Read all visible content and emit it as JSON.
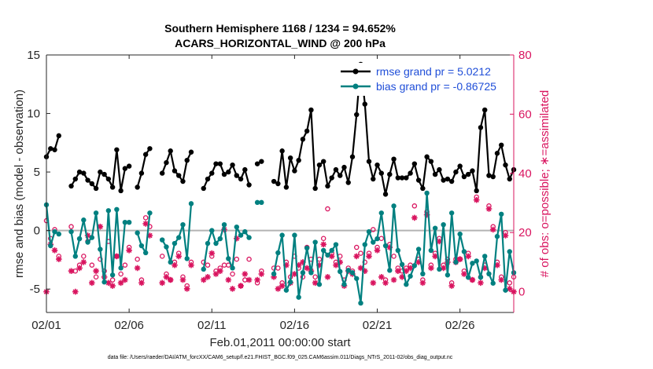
{
  "chart_data": {
    "type": "line",
    "title_line1": "Southern Hemisphere 1168 / 1234 = 94.652%",
    "title_line2": "ACARS_HORIZONTAL_WIND @ 200 hPa",
    "xlabel": "Feb.01,2011 00:00:00 start",
    "ylabel_left": "rmse and bias (model - observation)",
    "ylabel_right": "# of obs: o=possible; ∗=assimilated",
    "footer": "data file: /Users/raeder/DAI/ATM_forcXX/CAM6_setup/f.e21.FHIST_BGC.f09_025.CAM6assim.011/Diags_NTrS_2011-02/obs_diag_output.nc",
    "x_ticks": [
      "02/01",
      "02/06",
      "02/11",
      "02/16",
      "02/21",
      "02/26"
    ],
    "x_tick_days": [
      1,
      6,
      11,
      16,
      21,
      26
    ],
    "xlim": [
      1,
      29.25
    ],
    "ylim_left": [
      -7,
      15
    ],
    "y_ticks_left": [
      -5,
      0,
      5,
      10,
      15
    ],
    "ylim_right": [
      -7,
      80
    ],
    "y_ticks_right": [
      0,
      20,
      40,
      60,
      80
    ],
    "colors": {
      "rmse": "#000000",
      "bias": "#008080",
      "obs": "#d9145f",
      "zero_line": "#b3b3b3"
    },
    "legend": [
      {
        "key": "rmse",
        "label": "rmse grand pr = 5.0212"
      },
      {
        "key": "bias",
        "label": "bias grand pr = -0.86725"
      }
    ],
    "legend_placement": "top-right",
    "series": [
      {
        "name": "rmse grand pr = 5.0212",
        "key": "rmse",
        "values": [
          6.3,
          7.0,
          6.9,
          8.1,
          null,
          null,
          3.8,
          4.4,
          5.0,
          4.9,
          4.3,
          4.0,
          3.6,
          5.0,
          4.8,
          4.4,
          3.7,
          6.9,
          3.4,
          5.3,
          5.5,
          null,
          3.7,
          4.9,
          6.5,
          7.0,
          null,
          null,
          4.9,
          5.8,
          6.8,
          5.1,
          4.7,
          4.2,
          6.0,
          6.7,
          null,
          null,
          3.6,
          4.4,
          4.9,
          5.7,
          5.7,
          4.8,
          5.0,
          5.6,
          4.7,
          4.4,
          5.2,
          3.9,
          null,
          5.7,
          5.9,
          null,
          null,
          4.2,
          4.0,
          6.8,
          3.7,
          6.2,
          5.1,
          6.0,
          7.8,
          8.5,
          10.3,
          3.6,
          5.6,
          5.9,
          3.8,
          4.5,
          5.2,
          4.7,
          5.4,
          4.1,
          6.3,
          9.9,
          14.2,
          10.8,
          5.9,
          4.4,
          5.6,
          4.9,
          3.1,
          4.8,
          6.1,
          4.5,
          4.5,
          4.5,
          4.9,
          5.7,
          4.3,
          3.6,
          6.3,
          5.9,
          4.8,
          5.2,
          4.3,
          4.4,
          4.2,
          5.0,
          5.5,
          4.6,
          4.8,
          5.1,
          3.4,
          8.8,
          10.3,
          4.7,
          4.6,
          6.6,
          7.3,
          5.6,
          4.4,
          5.2
        ]
      },
      {
        "name": "bias grand pr = -0.86725",
        "key": "bias",
        "values": [
          2.2,
          -1.3,
          -0.1,
          -0.3,
          null,
          null,
          -0.1,
          -2.2,
          -0.7,
          0.9,
          -1.0,
          -0.6,
          1.5,
          -1.6,
          -4.4,
          1.7,
          -3.8,
          1.8,
          -3.2,
          0.7,
          0.7,
          null,
          -0.2,
          -1.3,
          -1.9,
          1.5,
          null,
          null,
          -0.8,
          -1.4,
          -2.7,
          -1.1,
          -0.6,
          0.5,
          -2.4,
          2.3,
          null,
          null,
          -3.3,
          -1.1,
          0.0,
          -1.1,
          -0.7,
          0.5,
          -2.4,
          -3.2,
          0.3,
          -0.4,
          -0.1,
          -0.6,
          null,
          2.4,
          2.4,
          null,
          null,
          -3.7,
          -1.9,
          -0.4,
          -5.1,
          -4.4,
          -0.4,
          -5.7,
          -3.6,
          -1.5,
          -3.6,
          -1.0,
          -4.6,
          -1.7,
          -2.1,
          -1.7,
          -1.2,
          -3.5,
          -4.6,
          -3.4,
          -3.6,
          -4.1,
          -6.2,
          -1.2,
          -0.1,
          -1.0,
          -0.7,
          1.5,
          -1.3,
          -3.4,
          2.1,
          -1.7,
          -2.9,
          -4.6,
          -3.9,
          -3.0,
          -1.6,
          -3.7,
          3.2,
          -1.7,
          0.2,
          -3.3,
          0.5,
          -3.8,
          1.5,
          -2.7,
          -0.3,
          -1.8,
          -4.0,
          -2.8,
          -2.6,
          -4.0,
          -2.2,
          -3.7,
          -4.5,
          -0.5,
          1.4,
          -5.1,
          -1.8,
          -3.6
        ]
      },
      {
        "name": "o=possible",
        "key": "possible",
        "values": [
          24,
          18,
          21,
          12,
          null,
          null,
          22,
          7,
          9,
          12,
          17,
          9,
          5,
          11,
          7,
          17,
          4,
          12,
          6,
          9,
          15,
          null,
          11,
          4,
          25,
          22,
          null,
          null,
          12,
          6,
          4,
          10,
          13,
          5,
          2,
          10,
          null,
          null,
          10,
          9,
          12,
          7,
          8,
          9,
          9,
          6,
          11,
          2,
          4,
          11,
          null,
          3,
          7,
          null,
          null,
          8,
          8,
          3,
          10,
          5,
          12,
          8,
          5,
          15,
          11,
          5,
          11,
          18,
          28,
          13,
          10,
          12,
          4,
          8,
          7,
          15,
          13,
          10,
          13,
          21,
          15,
          18,
          4,
          16,
          12,
          8,
          7,
          8,
          9,
          29,
          11,
          4,
          27,
          9,
          13,
          18,
          9,
          11,
          3,
          11,
          11,
          7,
          13,
          4,
          32,
          5,
          9,
          29,
          22,
          10,
          5,
          20,
          3,
          5
        ]
      },
      {
        "name": "∗=assimilated",
        "key": "assimilated",
        "values": [
          0,
          16,
          14,
          11,
          null,
          null,
          7,
          0,
          8,
          10,
          19,
          3,
          7,
          22,
          5,
          3,
          2,
          12,
          3,
          4,
          14,
          null,
          8,
          3,
          23,
          19,
          null,
          null,
          3,
          5,
          4,
          9,
          12,
          4,
          1,
          9,
          null,
          null,
          4,
          5,
          13,
          6,
          7,
          21,
          4,
          1,
          18,
          2,
          6,
          4,
          null,
          4,
          6,
          null,
          null,
          5,
          1,
          2,
          9,
          3,
          6,
          9,
          10,
          8,
          7,
          3,
          9,
          16,
          5,
          12,
          9,
          10,
          2,
          7,
          6,
          12,
          8,
          7,
          12,
          3,
          14,
          5,
          3,
          15,
          4,
          7,
          5,
          7,
          8,
          25,
          10,
          3,
          26,
          8,
          12,
          17,
          8,
          10,
          2,
          10,
          11,
          6,
          12,
          4,
          31,
          3,
          8,
          28,
          21,
          9,
          4,
          19,
          1,
          0
        ]
      }
    ]
  }
}
